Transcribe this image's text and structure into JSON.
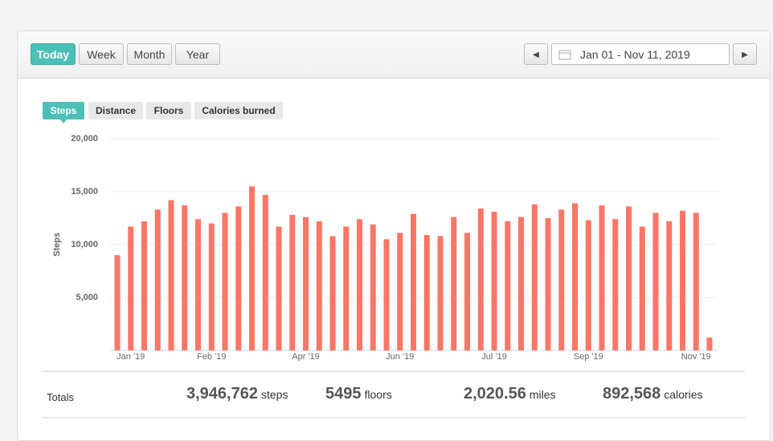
{
  "range_buttons": [
    "Today",
    "Week",
    "Month",
    "Year"
  ],
  "date_range": "Jan 01 - Nov 11, 2019",
  "metric_tabs": [
    "Steps",
    "Distance",
    "Floors",
    "Calories burned"
  ],
  "chart_data": {
    "type": "bar",
    "y_label": "Steps",
    "color": "#fa7666",
    "grid": true,
    "categories": [
      null,
      "Jan '19",
      null,
      null,
      null,
      null,
      null,
      "Feb '19",
      null,
      null,
      null,
      null,
      null,
      null,
      "Apr '19",
      null,
      null,
      null,
      null,
      null,
      null,
      "Jun '19",
      null,
      null,
      null,
      null,
      null,
      null,
      "Jul '19",
      null,
      null,
      null,
      null,
      null,
      null,
      "Sep '19",
      null,
      null,
      null,
      null,
      null,
      null,
      null,
      "Nov '19",
      null
    ],
    "values": [
      9000,
      11700,
      12200,
      13300,
      14200,
      13700,
      12400,
      12000,
      13000,
      13600,
      15500,
      14700,
      11700,
      12800,
      12600,
      12200,
      10800,
      11700,
      12400,
      11900,
      10500,
      11100,
      12900,
      10900,
      10800,
      12600,
      11100,
      13400,
      13100,
      12200,
      12600,
      13800,
      12500,
      13300,
      13900,
      12300,
      13700,
      12400,
      13600,
      11700,
      13000,
      12200,
      13200,
      13000,
      1200
    ],
    "ylim": [
      0,
      20000
    ],
    "yticks": [
      {
        "value": 5000,
        "label": "5,000"
      },
      {
        "value": 10000,
        "label": "10,000"
      },
      {
        "value": 15000,
        "label": "15,000"
      },
      {
        "value": 20000,
        "label": "20,000"
      }
    ]
  },
  "totals": {
    "label": "Totals",
    "items": [
      {
        "value": "3,946,762",
        "unit": "steps"
      },
      {
        "value": "5495",
        "unit": "floors"
      },
      {
        "value": "2,020.56",
        "unit": "miles"
      },
      {
        "value": "892,568",
        "unit": "calories"
      }
    ]
  }
}
